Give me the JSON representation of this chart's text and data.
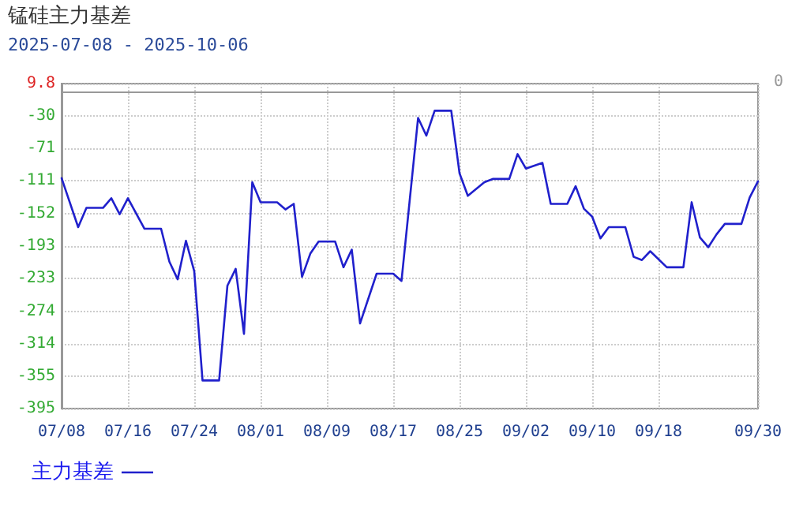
{
  "chart_data": {
    "type": "line",
    "title": "锰硅主力基差",
    "subtitle": "2025-07-08 - 2025-10-06",
    "annotations": [
      "0"
    ],
    "x": [
      "2025-07-08",
      "2025-07-10",
      "2025-07-11",
      "2025-07-13",
      "2025-07-14",
      "2025-07-15",
      "2025-07-16",
      "2025-07-18",
      "2025-07-20",
      "2025-07-21",
      "2025-07-22",
      "2025-07-23",
      "2025-07-24",
      "2025-07-25",
      "2025-07-27",
      "2025-07-28",
      "2025-07-29",
      "2025-07-30",
      "2025-07-31",
      "2025-08-01",
      "2025-08-03",
      "2025-08-04",
      "2025-08-05",
      "2025-08-06",
      "2025-08-07",
      "2025-08-08",
      "2025-08-10",
      "2025-08-11",
      "2025-08-12",
      "2025-08-13",
      "2025-08-15",
      "2025-08-17",
      "2025-08-18",
      "2025-08-20",
      "2025-08-21",
      "2025-08-22",
      "2025-08-24",
      "2025-08-25",
      "2025-08-26",
      "2025-08-28",
      "2025-08-29",
      "2025-08-31",
      "2025-09-01",
      "2025-09-02",
      "2025-09-04",
      "2025-09-05",
      "2025-09-07",
      "2025-09-08",
      "2025-09-09",
      "2025-09-10",
      "2025-09-11",
      "2025-09-12",
      "2025-09-14",
      "2025-09-15",
      "2025-09-16",
      "2025-09-17",
      "2025-09-19",
      "2025-09-21",
      "2025-09-22",
      "2025-09-23",
      "2025-09-24",
      "2025-09-25",
      "2025-09-26",
      "2025-09-28",
      "2025-09-29",
      "2025-09-30"
    ],
    "series": [
      {
        "name": "主力基差",
        "color": "#2020cc",
        "values": [
          -108,
          -169,
          -145,
          -145,
          -133,
          -153,
          -133,
          -171,
          -171,
          -212,
          -234,
          -186,
          -224,
          -360,
          -360,
          -242,
          -221,
          -302,
          -113,
          -138,
          -138,
          -147,
          -140,
          -231,
          -202,
          -187,
          -187,
          -219,
          -197,
          -289,
          -227,
          -227,
          -236,
          -33,
          -55,
          -24,
          -24,
          -102,
          -130,
          -113,
          -109,
          -109,
          -78,
          -96,
          -89,
          -140,
          -140,
          -118,
          -146,
          -156,
          -183,
          -169,
          -169,
          -206,
          -210,
          -199,
          -219,
          -219,
          -138,
          -182,
          -194,
          -178,
          -165,
          -165,
          -132,
          -112
        ]
      }
    ],
    "xlim": [
      "2025-07-08",
      "2025-09-30"
    ],
    "xticks": [
      {
        "value": "2025-07-08",
        "label": "07/08"
      },
      {
        "value": "2025-07-16",
        "label": "07/16"
      },
      {
        "value": "2025-07-24",
        "label": "07/24"
      },
      {
        "value": "2025-08-01",
        "label": "08/01"
      },
      {
        "value": "2025-08-09",
        "label": "08/09"
      },
      {
        "value": "2025-08-17",
        "label": "08/17"
      },
      {
        "value": "2025-08-25",
        "label": "08/25"
      },
      {
        "value": "2025-09-02",
        "label": "09/02"
      },
      {
        "value": "2025-09-10",
        "label": "09/10"
      },
      {
        "value": "2025-09-18",
        "label": "09/18"
      },
      {
        "value": "2025-09-30",
        "label": "09/30"
      }
    ],
    "ylim": [
      -395,
      9.8
    ],
    "yticks": [
      -395,
      -355,
      -314,
      -274,
      -233,
      -193,
      -152,
      -111,
      -71,
      -30,
      9.8
    ],
    "grid": true,
    "legend": "bottom left",
    "marker": "none",
    "line_style": "solid"
  }
}
